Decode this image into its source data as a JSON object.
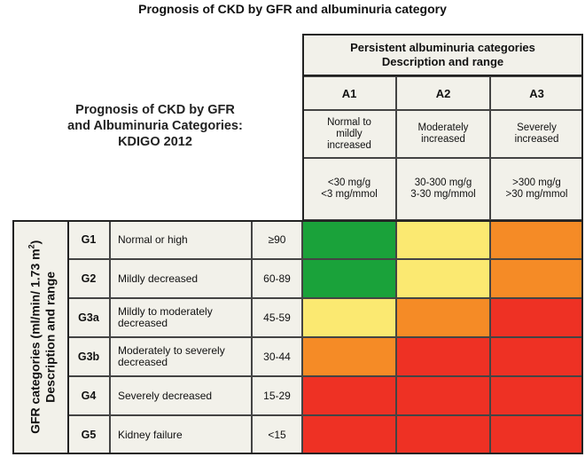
{
  "title": "Prognosis of CKD by GFR and albuminuria category",
  "left_heading": [
    "Prognosis of CKD by GFR",
    "and Albuminuria Categories:",
    "KDIGO 2012"
  ],
  "albuminuria": {
    "header_line1": "Persistent albuminuria categories",
    "header_line2": "Description and range",
    "categories": [
      {
        "code": "A1",
        "desc": [
          "Normal to",
          "mildly",
          "increased"
        ],
        "range": [
          "<30 mg/g",
          "<3 mg/mmol"
        ]
      },
      {
        "code": "A2",
        "desc": [
          "Moderately",
          "increased"
        ],
        "range": [
          "30-300 mg/g",
          "3-30 mg/mmol"
        ]
      },
      {
        "code": "A3",
        "desc": [
          "Severely",
          "increased"
        ],
        "range": [
          ">300 mg/g",
          ">30 mg/mmol"
        ]
      }
    ]
  },
  "gfr": {
    "axis_label_line1": "GFR categories (ml/min/ 1.73 m",
    "axis_label_sup": "2",
    "axis_label_close": ")",
    "axis_label_line2": "Description and range",
    "rows": [
      {
        "code": "G1",
        "desc": "Normal or high",
        "range": "≥90",
        "risk": [
          "green",
          "yellow",
          "orange"
        ]
      },
      {
        "code": "G2",
        "desc": "Mildly decreased",
        "range": "60-89",
        "risk": [
          "green",
          "yellow",
          "orange"
        ]
      },
      {
        "code": "G3a",
        "desc": "Mildly to moderately decreased",
        "range": "45-59",
        "risk": [
          "yellow",
          "orange",
          "red"
        ]
      },
      {
        "code": "G3b",
        "desc": "Moderately to severely decreased",
        "range": "30-44",
        "risk": [
          "orange",
          "red",
          "red"
        ]
      },
      {
        "code": "G4",
        "desc": "Severely decreased",
        "range": "15-29",
        "risk": [
          "red",
          "red",
          "red"
        ]
      },
      {
        "code": "G5",
        "desc": "Kidney failure",
        "range": "<15",
        "risk": [
          "red",
          "red",
          "red"
        ]
      }
    ]
  },
  "colors": {
    "green": "#1aa23a",
    "yellow": "#fbe971",
    "orange": "#f58b26",
    "red": "#ee3124"
  }
}
